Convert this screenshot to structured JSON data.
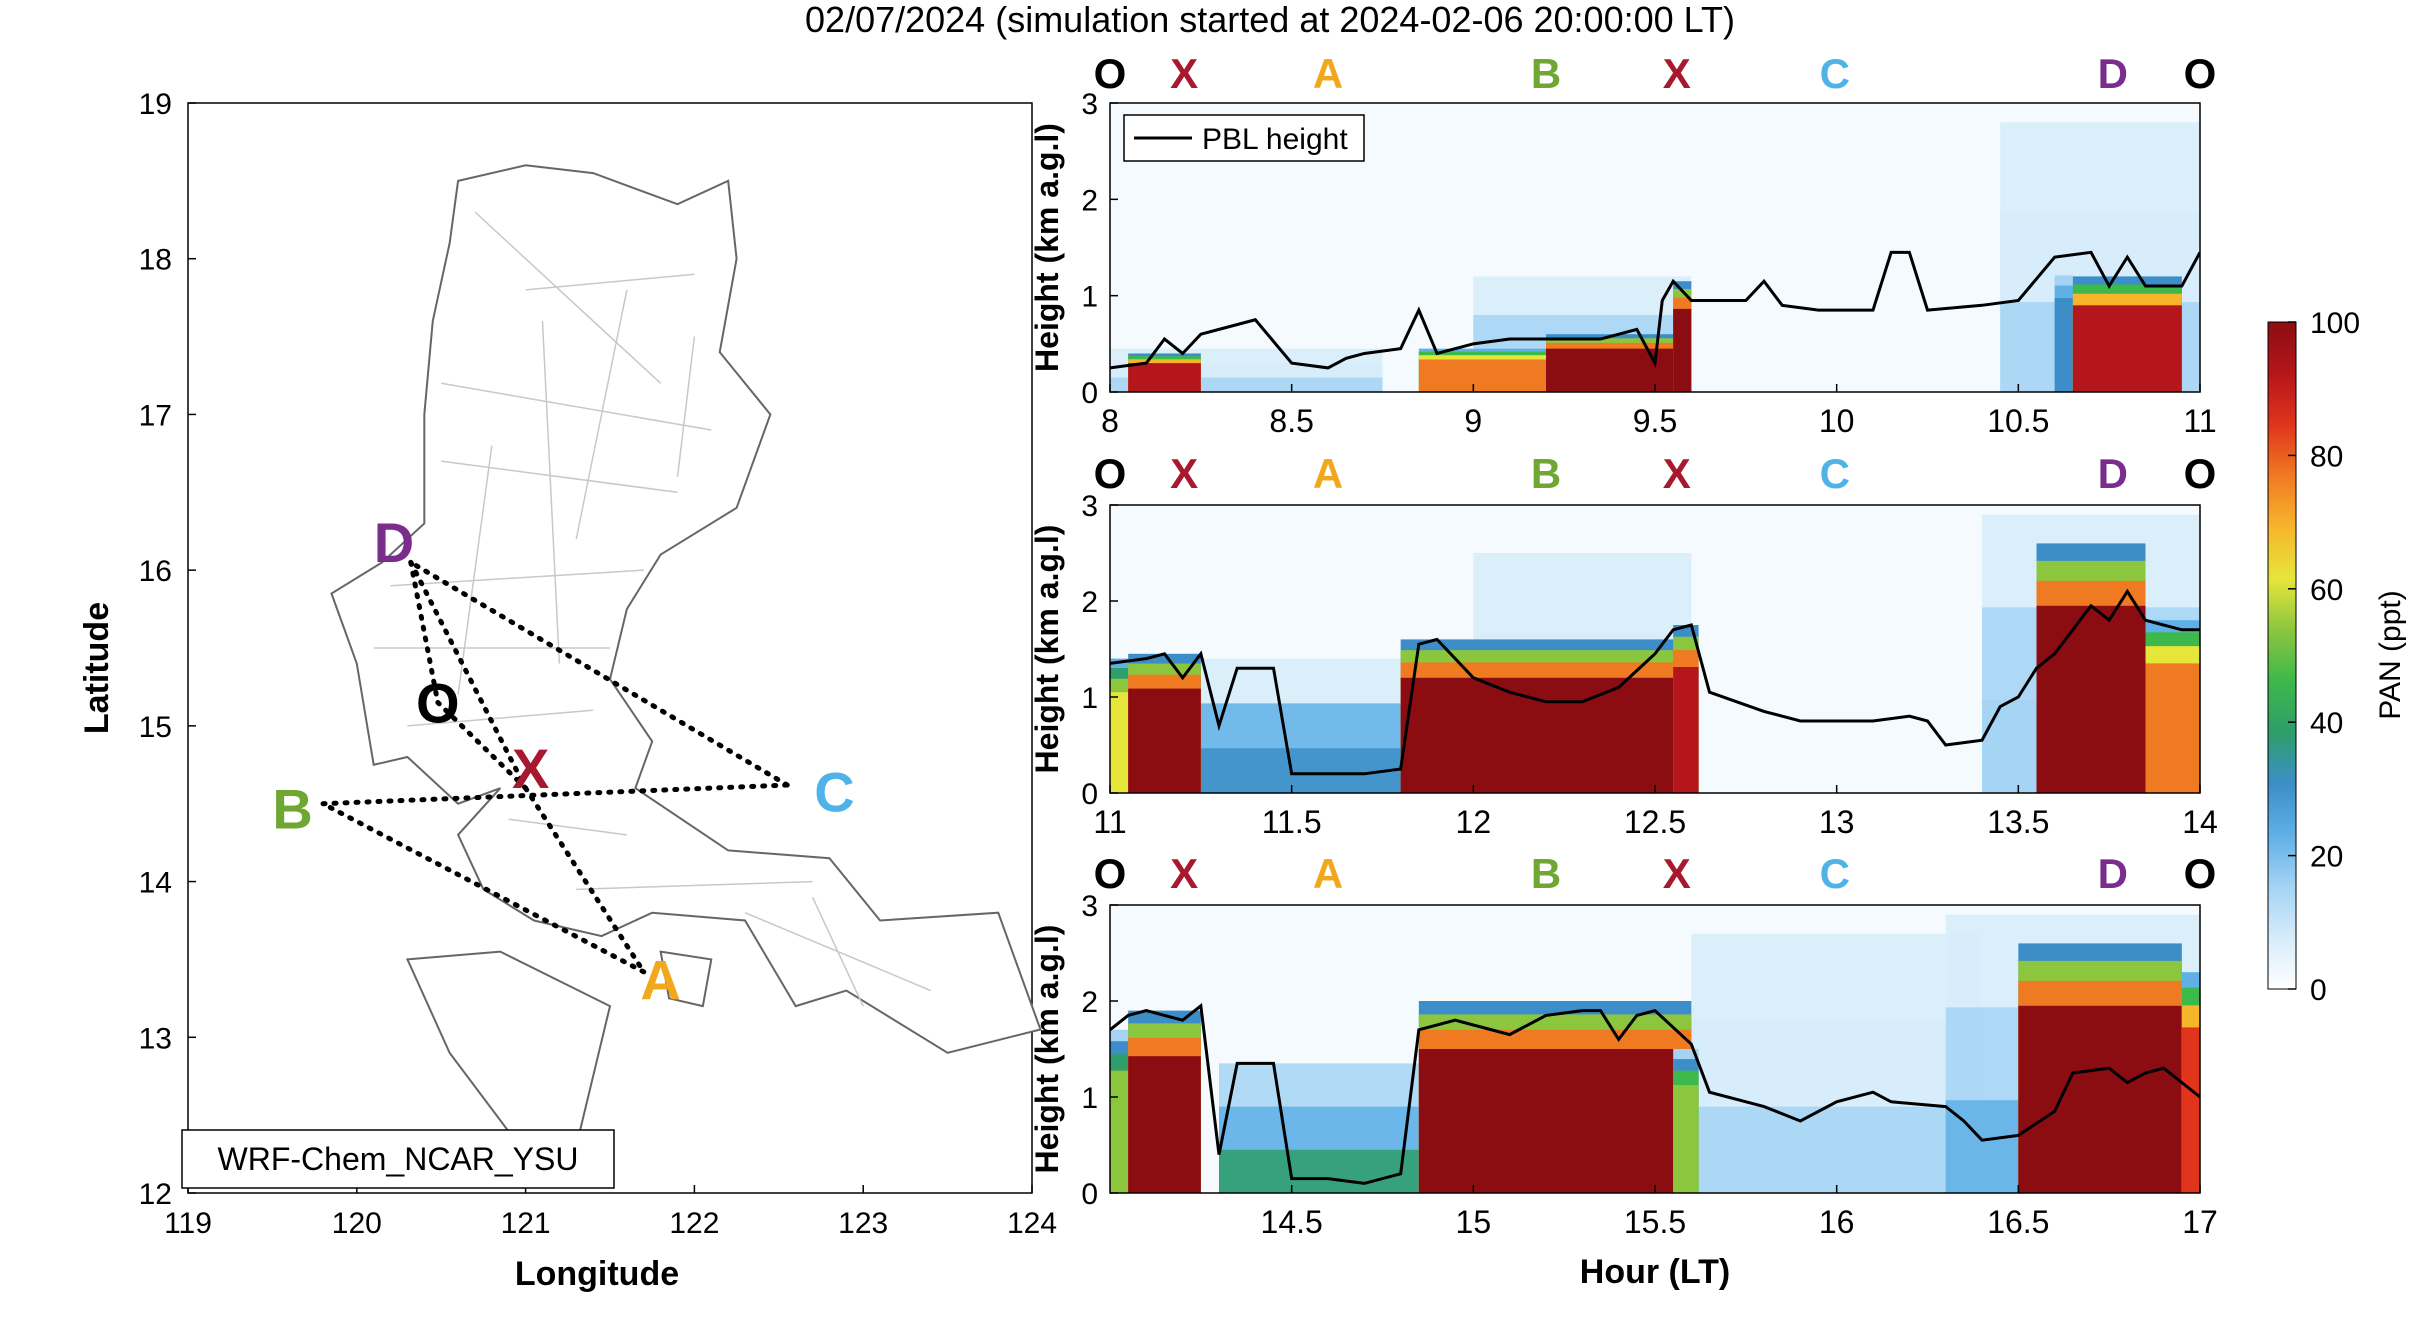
{
  "figure": {
    "title": "02/07/2024 (simulation started at 2024-02-06 20:00:00 LT)"
  },
  "map": {
    "xlabel": "Longitude",
    "ylabel": "Latitude",
    "xticks": [
      "119",
      "120",
      "121",
      "122",
      "123",
      "124"
    ],
    "yticks": [
      "12",
      "13",
      "14",
      "15",
      "16",
      "17",
      "18",
      "19"
    ],
    "xlim": [
      119,
      124
    ],
    "ylim": [
      12,
      19
    ],
    "model_label": "WRF-Chem_NCAR_YSU",
    "sites": [
      {
        "id": "D",
        "label": "D",
        "lon": 120.22,
        "lat": 16.18,
        "color": "#7B2D8E"
      },
      {
        "id": "O",
        "label": "O",
        "lon": 120.48,
        "lat": 15.15,
        "color": "#000000"
      },
      {
        "id": "X",
        "label": "X",
        "lon": 121.03,
        "lat": 14.73,
        "color": "#A6192E"
      },
      {
        "id": "B",
        "label": "B",
        "lon": 119.62,
        "lat": 14.47,
        "color": "#6FA732"
      },
      {
        "id": "C",
        "label": "C",
        "lon": 122.83,
        "lat": 14.58,
        "color": "#4FB3E8"
      },
      {
        "id": "A",
        "label": "A",
        "lon": 121.8,
        "lat": 13.37,
        "color": "#F2A81D"
      }
    ],
    "route_points": [
      {
        "lon": 120.32,
        "lat": 16.05
      },
      {
        "lon": 120.48,
        "lat": 15.15
      },
      {
        "lon": 121.0,
        "lat": 14.6
      },
      {
        "lon": 119.8,
        "lat": 14.5
      },
      {
        "lon": 122.55,
        "lat": 14.62
      },
      {
        "lon": 121.7,
        "lat": 13.42
      }
    ]
  },
  "panels": {
    "ylabel": "Height (km a.g.l)",
    "xlabel": "Hour (LT)",
    "legend": "PBL height",
    "site_labels": [
      {
        "label": "O",
        "color": "#000000",
        "pos": 0.0
      },
      {
        "label": "X",
        "color": "#A6192E",
        "pos": 0.068
      },
      {
        "label": "A",
        "color": "#F2A81D",
        "pos": 0.2
      },
      {
        "label": "B",
        "color": "#6FA732",
        "pos": 0.4
      },
      {
        "label": "X",
        "color": "#A6192E",
        "pos": 0.52
      },
      {
        "label": "C",
        "color": "#4FB3E8",
        "pos": 0.665
      },
      {
        "label": "D",
        "color": "#7B2D8E",
        "pos": 0.92
      },
      {
        "label": "O",
        "color": "#000000",
        "pos": 1.0
      }
    ]
  },
  "colorbar": {
    "label": "PAN (ppt)",
    "ticks": [
      "0",
      "20",
      "40",
      "60",
      "80",
      "100"
    ],
    "range": [
      0,
      100
    ],
    "colors": [
      "#ffffff",
      "#d6ecfa",
      "#a4d3f4",
      "#5fb0e6",
      "#3d8ec8",
      "#2e9e6a",
      "#3db84a",
      "#8cc63f",
      "#e6e63a",
      "#f7b52c",
      "#f07a22",
      "#e0341c",
      "#b5161b",
      "#8b0d12"
    ]
  },
  "chart_data": [
    {
      "type": "heatmap",
      "title": "",
      "xlabel": "",
      "ylabel": "Height (km a.g.l)",
      "xlim": [
        8,
        11
      ],
      "ylim": [
        0,
        3
      ],
      "xticks": [
        "8",
        "8.5",
        "9",
        "9.5",
        "10",
        "10.5",
        "11"
      ],
      "yticks": [
        "0",
        "1",
        "2",
        "3"
      ],
      "pbl": [
        [
          8.0,
          0.25
        ],
        [
          8.1,
          0.3
        ],
        [
          8.15,
          0.55
        ],
        [
          8.2,
          0.4
        ],
        [
          8.25,
          0.6
        ],
        [
          8.3,
          0.65
        ],
        [
          8.4,
          0.75
        ],
        [
          8.5,
          0.3
        ],
        [
          8.6,
          0.25
        ],
        [
          8.65,
          0.35
        ],
        [
          8.7,
          0.4
        ],
        [
          8.8,
          0.45
        ],
        [
          8.85,
          0.85
        ],
        [
          8.9,
          0.4
        ],
        [
          9.0,
          0.5
        ],
        [
          9.1,
          0.55
        ],
        [
          9.2,
          0.55
        ],
        [
          9.35,
          0.55
        ],
        [
          9.45,
          0.65
        ],
        [
          9.5,
          0.3
        ],
        [
          9.52,
          0.95
        ],
        [
          9.55,
          1.15
        ],
        [
          9.6,
          0.95
        ],
        [
          9.75,
          0.95
        ],
        [
          9.8,
          1.15
        ],
        [
          9.85,
          0.9
        ],
        [
          9.95,
          0.85
        ],
        [
          10.1,
          0.85
        ],
        [
          10.15,
          1.45
        ],
        [
          10.2,
          1.45
        ],
        [
          10.25,
          0.85
        ],
        [
          10.4,
          0.9
        ],
        [
          10.5,
          0.95
        ],
        [
          10.6,
          1.4
        ],
        [
          10.7,
          1.45
        ],
        [
          10.75,
          1.1
        ],
        [
          10.8,
          1.4
        ],
        [
          10.85,
          1.1
        ],
        [
          10.95,
          1.1
        ],
        [
          11.0,
          1.45
        ]
      ],
      "plumes": [
        {
          "x0": 8.05,
          "x1": 8.25,
          "height": 0.4,
          "level": 90
        },
        {
          "x0": 8.85,
          "x1": 9.2,
          "height": 0.45,
          "level": 80
        },
        {
          "x0": 9.2,
          "x1": 9.55,
          "height": 0.6,
          "level": 100
        },
        {
          "x0": 9.55,
          "x1": 9.6,
          "height": 1.15,
          "level": 100
        },
        {
          "x0": 10.6,
          "x1": 10.65,
          "height": 1.3,
          "level": 30
        },
        {
          "x0": 10.65,
          "x1": 10.95,
          "height": 1.2,
          "level": 90
        }
      ],
      "background": [
        {
          "x0": 8.0,
          "x1": 8.75,
          "height": 0.45,
          "level": 10
        },
        {
          "x0": 9.0,
          "x1": 9.6,
          "height": 1.2,
          "level": 15
        },
        {
          "x0": 10.45,
          "x1": 11.0,
          "height": 2.8,
          "level": 10
        }
      ]
    },
    {
      "type": "heatmap",
      "title": "",
      "xlabel": "",
      "ylabel": "Height (km a.g.l)",
      "xlim": [
        11,
        14
      ],
      "ylim": [
        0,
        3
      ],
      "xticks": [
        "11",
        "11.5",
        "12",
        "12.5",
        "13",
        "13.5",
        "14"
      ],
      "yticks": [
        "0",
        "1",
        "2",
        "3"
      ],
      "pbl": [
        [
          11.0,
          1.35
        ],
        [
          11.1,
          1.4
        ],
        [
          11.15,
          1.45
        ],
        [
          11.2,
          1.2
        ],
        [
          11.25,
          1.45
        ],
        [
          11.3,
          0.7
        ],
        [
          11.35,
          1.3
        ],
        [
          11.45,
          1.3
        ],
        [
          11.5,
          0.2
        ],
        [
          11.6,
          0.2
        ],
        [
          11.7,
          0.2
        ],
        [
          11.8,
          0.25
        ],
        [
          11.85,
          1.55
        ],
        [
          11.9,
          1.6
        ],
        [
          12.0,
          1.2
        ],
        [
          12.1,
          1.05
        ],
        [
          12.2,
          0.95
        ],
        [
          12.3,
          0.95
        ],
        [
          12.4,
          1.1
        ],
        [
          12.5,
          1.45
        ],
        [
          12.55,
          1.7
        ],
        [
          12.6,
          1.75
        ],
        [
          12.65,
          1.05
        ],
        [
          12.8,
          0.85
        ],
        [
          12.9,
          0.75
        ],
        [
          13.0,
          0.75
        ],
        [
          13.1,
          0.75
        ],
        [
          13.2,
          0.8
        ],
        [
          13.25,
          0.75
        ],
        [
          13.3,
          0.5
        ],
        [
          13.4,
          0.55
        ],
        [
          13.45,
          0.9
        ],
        [
          13.5,
          1.0
        ],
        [
          13.55,
          1.3
        ],
        [
          13.6,
          1.45
        ],
        [
          13.7,
          1.95
        ],
        [
          13.75,
          1.8
        ],
        [
          13.8,
          2.1
        ],
        [
          13.85,
          1.8
        ],
        [
          13.95,
          1.7
        ],
        [
          14.0,
          1.7
        ]
      ],
      "plumes": [
        {
          "x0": 11.0,
          "x1": 11.05,
          "height": 1.4,
          "level": 65
        },
        {
          "x0": 11.05,
          "x1": 11.25,
          "height": 1.45,
          "level": 100
        },
        {
          "x0": 11.8,
          "x1": 12.55,
          "height": 1.6,
          "level": 100
        },
        {
          "x0": 12.55,
          "x1": 12.62,
          "height": 1.75,
          "level": 95
        },
        {
          "x0": 13.55,
          "x1": 13.85,
          "height": 2.6,
          "level": 100
        },
        {
          "x0": 13.85,
          "x1": 14.0,
          "height": 1.8,
          "level": 80
        }
      ],
      "background": [
        {
          "x0": 11.25,
          "x1": 11.8,
          "height": 1.4,
          "level": 20
        },
        {
          "x0": 12.0,
          "x1": 12.6,
          "height": 2.5,
          "level": 10
        },
        {
          "x0": 13.4,
          "x1": 14.0,
          "height": 2.9,
          "level": 12
        }
      ]
    },
    {
      "type": "heatmap",
      "title": "",
      "xlabel": "Hour (LT)",
      "ylabel": "Height (km a.g.l)",
      "xlim": [
        14,
        17
      ],
      "ylim": [
        0,
        3
      ],
      "xticks": [
        "14.5",
        "15",
        "15.5",
        "16",
        "16.5",
        "17"
      ],
      "yticks": [
        "0",
        "1",
        "2",
        "3"
      ],
      "pbl": [
        [
          14.0,
          1.7
        ],
        [
          14.05,
          1.85
        ],
        [
          14.1,
          1.9
        ],
        [
          14.15,
          1.85
        ],
        [
          14.2,
          1.8
        ],
        [
          14.25,
          1.95
        ],
        [
          14.3,
          0.4
        ],
        [
          14.35,
          1.35
        ],
        [
          14.45,
          1.35
        ],
        [
          14.5,
          0.15
        ],
        [
          14.6,
          0.15
        ],
        [
          14.7,
          0.1
        ],
        [
          14.8,
          0.2
        ],
        [
          14.85,
          1.7
        ],
        [
          14.95,
          1.8
        ],
        [
          15.0,
          1.75
        ],
        [
          15.1,
          1.65
        ],
        [
          15.2,
          1.85
        ],
        [
          15.3,
          1.9
        ],
        [
          15.35,
          1.9
        ],
        [
          15.4,
          1.6
        ],
        [
          15.45,
          1.85
        ],
        [
          15.5,
          1.9
        ],
        [
          15.6,
          1.55
        ],
        [
          15.65,
          1.05
        ],
        [
          15.8,
          0.9
        ],
        [
          15.9,
          0.75
        ],
        [
          16.0,
          0.95
        ],
        [
          16.1,
          1.05
        ],
        [
          16.15,
          0.95
        ],
        [
          16.3,
          0.9
        ],
        [
          16.35,
          0.75
        ],
        [
          16.4,
          0.55
        ],
        [
          16.5,
          0.6
        ],
        [
          16.6,
          0.85
        ],
        [
          16.65,
          1.25
        ],
        [
          16.75,
          1.3
        ],
        [
          16.8,
          1.15
        ],
        [
          16.85,
          1.25
        ],
        [
          16.9,
          1.3
        ],
        [
          17.0,
          1.0
        ]
      ],
      "plumes": [
        {
          "x0": 14.0,
          "x1": 14.05,
          "height": 1.7,
          "level": 50
        },
        {
          "x0": 14.05,
          "x1": 14.25,
          "height": 1.9,
          "level": 100
        },
        {
          "x0": 14.85,
          "x1": 15.6,
          "height": 2.0,
          "level": 100
        },
        {
          "x0": 15.55,
          "x1": 15.62,
          "height": 1.5,
          "level": 55
        },
        {
          "x0": 16.5,
          "x1": 16.95,
          "height": 2.6,
          "level": 100
        },
        {
          "x0": 16.95,
          "x1": 17.0,
          "height": 2.3,
          "level": 85
        }
      ],
      "background": [
        {
          "x0": 14.3,
          "x1": 14.85,
          "height": 1.35,
          "level": 25
        },
        {
          "x0": 15.6,
          "x1": 16.4,
          "height": 2.7,
          "level": 8
        },
        {
          "x0": 16.3,
          "x1": 17.0,
          "height": 2.9,
          "level": 15
        }
      ]
    }
  ]
}
